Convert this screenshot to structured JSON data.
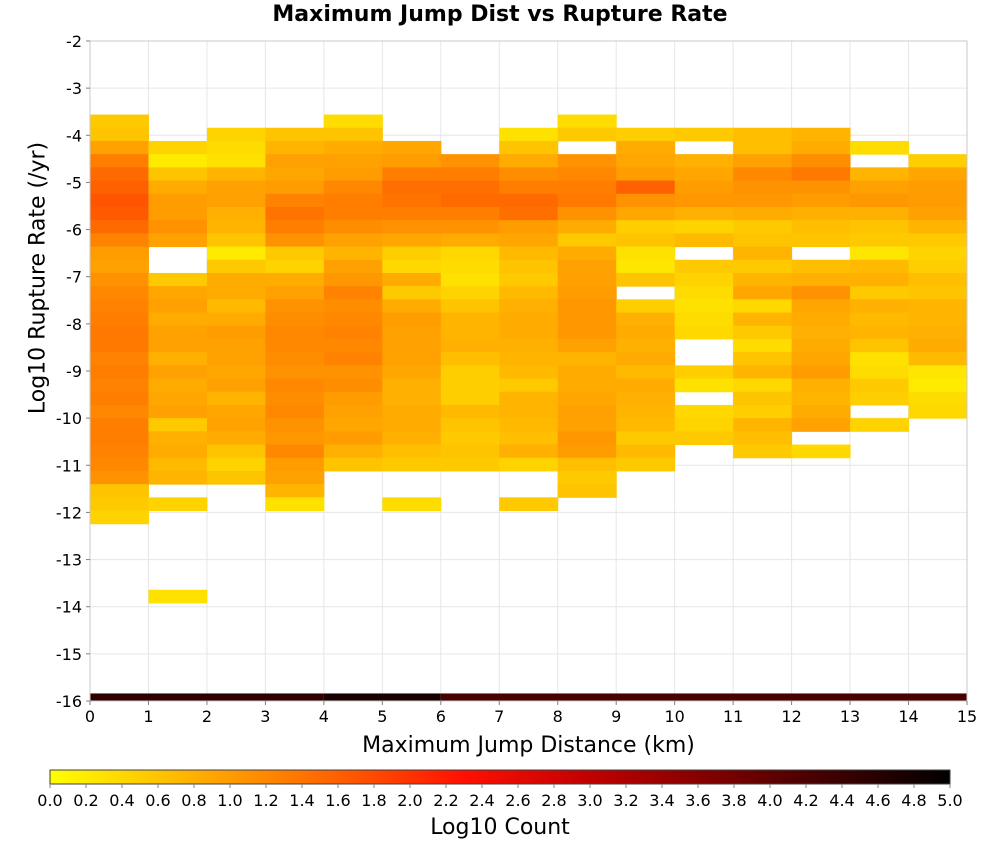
{
  "chart_data": {
    "type": "heatmap",
    "title": "Maximum Jump Dist vs Rupture Rate",
    "xlabel": "Maximum Jump Distance (km)",
    "ylabel": "Log10 Rupture Rate (/yr)",
    "xlim": [
      0,
      15
    ],
    "ylim": [
      -16,
      -2
    ],
    "x_ticks": [
      "0",
      "1",
      "2",
      "3",
      "4",
      "5",
      "6",
      "7",
      "8",
      "9",
      "10",
      "11",
      "12",
      "13",
      "14",
      "15"
    ],
    "y_ticks": [
      "-2",
      "-3",
      "-4",
      "-5",
      "-6",
      "-7",
      "-8",
      "-9",
      "-10",
      "-11",
      "-12",
      "-13",
      "-14",
      "-15",
      "-16"
    ],
    "x_bin_width": 1,
    "y_bin_width": 0.28,
    "grid": true,
    "colorbar": {
      "label": "Log10 Count",
      "range": [
        0.0,
        5.0
      ],
      "ticks": [
        "0.0",
        "0.2",
        "0.4",
        "0.6",
        "0.8",
        "1.0",
        "1.2",
        "1.4",
        "1.6",
        "1.8",
        "2.0",
        "2.2",
        "2.4",
        "2.6",
        "2.8",
        "3.0",
        "3.2",
        "3.4",
        "3.6",
        "3.8",
        "4.0",
        "4.2",
        "4.4",
        "4.6",
        "4.8",
        "5.0"
      ],
      "colors": [
        "#ffff00",
        "#ffb000",
        "#ff6000",
        "#ff1000",
        "#c00000",
        "#600000",
        "#000000"
      ]
    },
    "columns": [
      {
        "x": 0,
        "y_top": -3.56,
        "values": [
          0.55,
          0.6,
          0.95,
          1.3,
          1.5,
          1.6,
          1.7,
          1.65,
          1.5,
          1.25,
          1.0,
          0.95,
          1.1,
          1.2,
          1.25,
          1.3,
          1.35,
          1.35,
          1.25,
          1.3,
          1.25,
          1.3,
          1.2,
          1.3,
          1.3,
          1.25,
          1.2,
          1.1,
          0.6,
          0.55,
          0.45
        ]
      },
      {
        "x": 1,
        "y_top": -4.12,
        "values": [
          0.45,
          0.2,
          0.6,
          0.85,
          1.0,
          1.0,
          1.1,
          0.95,
          null,
          null,
          0.55,
          0.9,
          0.95,
          0.85,
          0.95,
          0.95,
          0.8,
          0.95,
          0.85,
          0.9,
          0.95,
          0.55,
          0.8,
          0.85,
          0.7,
          0.75,
          null,
          0.45,
          null,
          null,
          null,
          null,
          null,
          null,
          0.3
        ]
      },
      {
        "x": 2,
        "y_top": -3.84,
        "values": [
          0.45,
          0.35,
          0.3,
          0.75,
          0.95,
          0.95,
          0.8,
          0.75,
          0.6,
          0.2,
          0.55,
          0.85,
          0.85,
          0.7,
          0.85,
          1.0,
          0.95,
          0.95,
          0.9,
          0.95,
          0.75,
          0.9,
          0.95,
          0.85,
          0.6,
          0.45,
          0.6
        ]
      },
      {
        "x": 3,
        "y_top": -3.84,
        "values": [
          0.6,
          0.75,
          0.95,
          0.9,
          1.0,
          1.25,
          1.4,
          1.3,
          1.1,
          0.55,
          0.45,
          0.85,
          0.95,
          1.1,
          1.15,
          1.2,
          1.2,
          1.15,
          1.1,
          1.2,
          1.15,
          1.2,
          1.1,
          1.05,
          1.2,
          1.0,
          0.95,
          0.75,
          0.3
        ]
      },
      {
        "x": 4,
        "y_top": -3.56,
        "values": [
          0.35,
          0.6,
          0.85,
          0.95,
          1.0,
          1.2,
          1.3,
          1.3,
          1.15,
          0.95,
          0.75,
          0.95,
          1.05,
          1.25,
          1.15,
          1.2,
          1.25,
          1.2,
          1.25,
          1.1,
          1.15,
          1.0,
          0.95,
          0.9,
          1.0,
          0.8,
          0.6
        ]
      },
      {
        "x": 5,
        "y_top": -4.12,
        "values": [
          0.9,
          1.0,
          1.3,
          1.45,
          1.4,
          1.3,
          1.1,
          0.9,
          0.5,
          0.4,
          0.85,
          0.55,
          0.85,
          1.0,
          0.95,
          0.95,
          0.95,
          0.9,
          0.8,
          0.8,
          0.85,
          0.85,
          0.8,
          0.65,
          0.55,
          null,
          null,
          0.35
        ]
      },
      {
        "x": 6,
        "y_top": -4.4,
        "values": [
          1.1,
          1.3,
          1.45,
          1.5,
          1.3,
          1.1,
          0.85,
          0.4,
          0.35,
          0.3,
          0.45,
          0.6,
          0.75,
          0.75,
          0.8,
          0.65,
          0.5,
          0.5,
          0.5,
          0.7,
          0.6,
          0.55,
          0.6,
          0.55
        ]
      },
      {
        "x": 7,
        "y_top": -3.84,
        "values": [
          0.3,
          0.6,
          0.85,
          1.15,
          1.3,
          1.5,
          1.45,
          1.0,
          0.9,
          0.7,
          0.6,
          0.55,
          0.7,
          0.8,
          0.85,
          0.85,
          0.8,
          0.75,
          0.7,
          0.55,
          0.75,
          0.75,
          0.7,
          0.65,
          0.8,
          0.45,
          null,
          null,
          0.55
        ]
      },
      {
        "x": 8,
        "y_top": -3.56,
        "values": [
          0.35,
          0.55,
          null,
          1.1,
          1.2,
          1.3,
          1.35,
          1.1,
          0.85,
          0.55,
          0.85,
          0.95,
          0.95,
          1.0,
          1.05,
          1.05,
          1.05,
          0.95,
          0.75,
          0.85,
          0.85,
          0.9,
          0.95,
          0.95,
          1.05,
          1.0,
          0.65,
          0.55,
          0.6
        ]
      },
      {
        "x": 9,
        "y_top": -3.84,
        "values": [
          0.5,
          0.85,
          0.9,
          1.0,
          1.6,
          1.1,
          0.9,
          0.5,
          0.6,
          0.3,
          0.25,
          0.6,
          null,
          0.5,
          0.8,
          0.85,
          0.8,
          0.85,
          0.7,
          0.85,
          0.8,
          0.75,
          0.7,
          0.55,
          0.7,
          0.55
        ]
      },
      {
        "x": 10,
        "y_top": -3.84,
        "values": [
          0.55,
          null,
          0.8,
          0.9,
          1.0,
          1.05,
          0.8,
          0.45,
          0.7,
          null,
          0.55,
          0.45,
          0.35,
          0.3,
          0.35,
          0.4,
          null,
          null,
          0.5,
          0.3,
          null,
          0.4,
          0.45,
          0.55
        ]
      },
      {
        "x": 11,
        "y_top": -3.84,
        "values": [
          0.65,
          0.65,
          0.95,
          1.2,
          1.1,
          1.05,
          0.85,
          0.55,
          0.6,
          0.75,
          0.55,
          0.75,
          0.9,
          0.4,
          0.75,
          0.55,
          0.35,
          0.6,
          0.75,
          0.4,
          0.6,
          0.5,
          0.75,
          0.65,
          0.55
        ]
      },
      {
        "x": 12,
        "y_top": -3.84,
        "values": [
          0.75,
          0.85,
          1.15,
          1.35,
          1.1,
          1.0,
          0.8,
          0.65,
          0.6,
          null,
          0.65,
          0.8,
          1.1,
          0.9,
          0.85,
          0.8,
          0.85,
          0.9,
          1.0,
          0.8,
          0.75,
          0.85,
          0.95,
          null,
          0.4
        ]
      },
      {
        "x": 13,
        "y_top": -4.12,
        "values": [
          0.35,
          null,
          0.75,
          0.95,
          1.05,
          0.8,
          0.6,
          0.55,
          0.25,
          0.7,
          0.8,
          0.55,
          0.8,
          0.7,
          0.75,
          0.6,
          0.3,
          0.35,
          0.55,
          0.5,
          null,
          0.45
        ]
      },
      {
        "x": 14,
        "y_top": -4.4,
        "values": [
          0.5,
          0.9,
          1.0,
          1.0,
          0.95,
          0.75,
          0.55,
          0.45,
          0.5,
          0.65,
          0.6,
          0.75,
          0.75,
          0.8,
          0.85,
          0.7,
          0.25,
          0.2,
          0.35,
          0.4
        ]
      }
    ],
    "bottom_band": {
      "y_range": [
        -16,
        -15.84
      ],
      "segments": [
        {
          "x0": 0,
          "x1": 4,
          "value": 4.5
        },
        {
          "x0": 4,
          "x1": 6,
          "value": 4.75
        },
        {
          "x0": 6,
          "x1": 15,
          "value": 4.25
        }
      ]
    }
  }
}
